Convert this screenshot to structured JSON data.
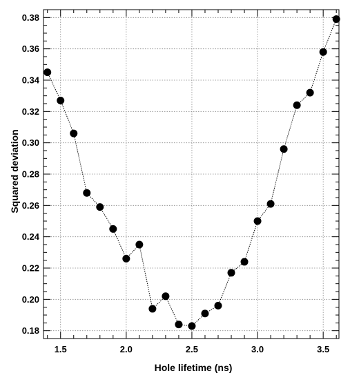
{
  "chart_data": {
    "type": "scatter",
    "title": "",
    "xlabel": "Hole lifetime (ns)",
    "ylabel": "Squared deviation",
    "xlim": [
      1.37,
      3.62
    ],
    "ylim": [
      0.175,
      0.385
    ],
    "xticks": [
      1.5,
      2.0,
      2.5,
      3.0,
      3.5
    ],
    "xtick_labels": [
      "1.5",
      "2.0",
      "2.5",
      "3.0",
      "3.5"
    ],
    "yticks": [
      0.18,
      0.2,
      0.22,
      0.24,
      0.26,
      0.28,
      0.3,
      0.32,
      0.34,
      0.36,
      0.38
    ],
    "ytick_labels": [
      "0.18",
      "0.20",
      "0.22",
      "0.24",
      "0.26",
      "0.28",
      "0.30",
      "0.32",
      "0.34",
      "0.36",
      "0.38"
    ],
    "grid": true,
    "connect_points": true,
    "line_style": "dotted",
    "marker_color": "#000000",
    "x": [
      1.4,
      1.5,
      1.6,
      1.7,
      1.8,
      1.9,
      2.0,
      2.1,
      2.2,
      2.3,
      2.4,
      2.5,
      2.6,
      2.7,
      2.8,
      2.9,
      3.0,
      3.1,
      3.2,
      3.3,
      3.4,
      3.5,
      3.6
    ],
    "y": [
      0.345,
      0.327,
      0.306,
      0.268,
      0.259,
      0.245,
      0.226,
      0.235,
      0.194,
      0.202,
      0.184,
      0.183,
      0.191,
      0.196,
      0.217,
      0.224,
      0.25,
      0.261,
      0.296,
      0.324,
      0.332,
      0.358,
      0.379
    ]
  }
}
